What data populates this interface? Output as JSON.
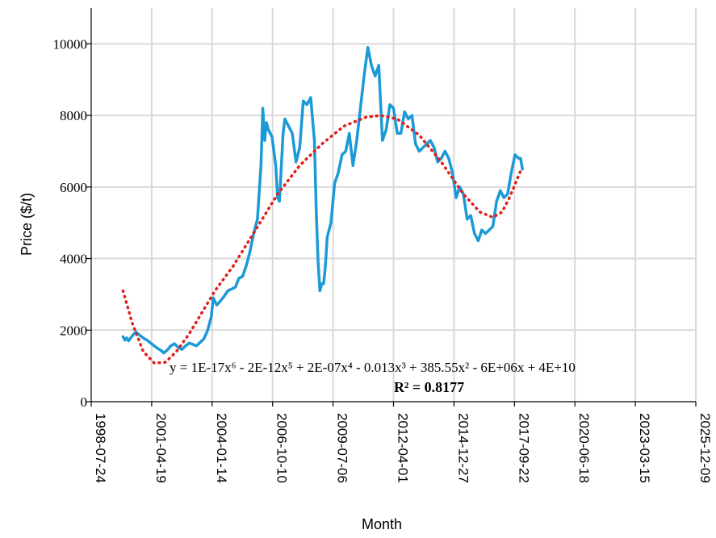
{
  "chart_data": {
    "type": "line",
    "xlabel": "Month",
    "ylabel": "Price ($/t)",
    "ylim": [
      0,
      11000
    ],
    "yticks": [
      "0",
      "2000",
      "4000",
      "6000",
      "8000",
      "10000"
    ],
    "xlim": [
      "1998-07-24",
      "2025-12-09"
    ],
    "xticks": [
      "1998-07-24",
      "2001-04-19",
      "2004-01-14",
      "2006-10-10",
      "2009-07-06",
      "2012-04-01",
      "2014-12-27",
      "2017-09-22",
      "2020-06-18",
      "2023-03-15",
      "2025-12-09"
    ],
    "grid": true,
    "legend": "none",
    "series": [
      {
        "color": "#1b9ad6",
        "points": [
          [
            "2000-01-01",
            1820
          ],
          [
            "2000-02-01",
            1720
          ],
          [
            "2000-03-01",
            1780
          ],
          [
            "2000-04-01",
            1700
          ],
          [
            "2000-06-01",
            1840
          ],
          [
            "2000-08-01",
            1950
          ],
          [
            "2000-10-01",
            1860
          ],
          [
            "2000-12-01",
            1780
          ],
          [
            "2001-02-01",
            1720
          ],
          [
            "2001-04-01",
            1640
          ],
          [
            "2001-06-01",
            1560
          ],
          [
            "2001-08-01",
            1480
          ],
          [
            "2001-10-01",
            1420
          ],
          [
            "2001-11-01",
            1360
          ],
          [
            "2002-01-01",
            1440
          ],
          [
            "2002-03-01",
            1560
          ],
          [
            "2002-05-01",
            1620
          ],
          [
            "2002-07-01",
            1520
          ],
          [
            "2002-09-01",
            1460
          ],
          [
            "2002-11-01",
            1560
          ],
          [
            "2003-01-01",
            1640
          ],
          [
            "2003-03-01",
            1600
          ],
          [
            "2003-05-01",
            1560
          ],
          [
            "2003-07-01",
            1660
          ],
          [
            "2003-09-01",
            1760
          ],
          [
            "2003-11-01",
            2000
          ],
          [
            "2004-01-01",
            2380
          ],
          [
            "2004-02-01",
            2900
          ],
          [
            "2004-04-01",
            2700
          ],
          [
            "2004-06-01",
            2820
          ],
          [
            "2004-08-01",
            2950
          ],
          [
            "2004-10-01",
            3100
          ],
          [
            "2004-12-01",
            3150
          ],
          [
            "2005-02-01",
            3200
          ],
          [
            "2005-04-01",
            3450
          ],
          [
            "2005-06-01",
            3500
          ],
          [
            "2005-08-01",
            3800
          ],
          [
            "2005-10-01",
            4200
          ],
          [
            "2005-12-01",
            4700
          ],
          [
            "2006-02-01",
            5100
          ],
          [
            "2006-04-01",
            6600
          ],
          [
            "2006-05-01",
            8200
          ],
          [
            "2006-06-01",
            7300
          ],
          [
            "2006-07-01",
            7800
          ],
          [
            "2006-08-01",
            7600
          ],
          [
            "2006-10-01",
            7400
          ],
          [
            "2006-12-01",
            6600
          ],
          [
            "2007-01-01",
            5700
          ],
          [
            "2007-02-01",
            5600
          ],
          [
            "2007-04-01",
            7500
          ],
          [
            "2007-05-01",
            7900
          ],
          [
            "2007-07-01",
            7700
          ],
          [
            "2007-09-01",
            7500
          ],
          [
            "2007-11-01",
            6700
          ],
          [
            "2008-01-01",
            7100
          ],
          [
            "2008-03-01",
            8400
          ],
          [
            "2008-05-01",
            8300
          ],
          [
            "2008-07-01",
            8500
          ],
          [
            "2008-09-01",
            7300
          ],
          [
            "2008-10-01",
            5300
          ],
          [
            "2008-11-01",
            3900
          ],
          [
            "2008-12-01",
            3100
          ],
          [
            "2009-01-01",
            3300
          ],
          [
            "2009-02-01",
            3300
          ],
          [
            "2009-03-01",
            3800
          ],
          [
            "2009-04-01",
            4600
          ],
          [
            "2009-05-01",
            4800
          ],
          [
            "2009-06-01",
            5000
          ],
          [
            "2009-08-01",
            6100
          ],
          [
            "2009-10-01",
            6400
          ],
          [
            "2009-12-01",
            6900
          ],
          [
            "2010-02-01",
            7000
          ],
          [
            "2010-04-01",
            7500
          ],
          [
            "2010-06-01",
            6600
          ],
          [
            "2010-08-01",
            7300
          ],
          [
            "2010-10-01",
            8200
          ],
          [
            "2010-12-01",
            9100
          ],
          [
            "2011-02-01",
            9900
          ],
          [
            "2011-04-01",
            9400
          ],
          [
            "2011-06-01",
            9100
          ],
          [
            "2011-08-01",
            9400
          ],
          [
            "2011-10-01",
            7300
          ],
          [
            "2011-12-01",
            7600
          ],
          [
            "2012-02-01",
            8300
          ],
          [
            "2012-04-01",
            8200
          ],
          [
            "2012-06-01",
            7500
          ],
          [
            "2012-08-01",
            7500
          ],
          [
            "2012-10-01",
            8100
          ],
          [
            "2012-12-01",
            7900
          ],
          [
            "2013-02-01",
            8000
          ],
          [
            "2013-04-01",
            7200
          ],
          [
            "2013-06-01",
            7000
          ],
          [
            "2013-08-01",
            7100
          ],
          [
            "2013-10-01",
            7200
          ],
          [
            "2013-12-01",
            7300
          ],
          [
            "2014-02-01",
            7100
          ],
          [
            "2014-04-01",
            6700
          ],
          [
            "2014-06-01",
            6800
          ],
          [
            "2014-08-01",
            7000
          ],
          [
            "2014-10-01",
            6800
          ],
          [
            "2014-12-01",
            6400
          ],
          [
            "2015-02-01",
            5700
          ],
          [
            "2015-04-01",
            6000
          ],
          [
            "2015-06-01",
            5800
          ],
          [
            "2015-08-01",
            5100
          ],
          [
            "2015-10-01",
            5200
          ],
          [
            "2015-12-01",
            4700
          ],
          [
            "2016-02-01",
            4500
          ],
          [
            "2016-04-01",
            4800
          ],
          [
            "2016-06-01",
            4700
          ],
          [
            "2016-08-01",
            4800
          ],
          [
            "2016-10-01",
            4900
          ],
          [
            "2016-12-01",
            5600
          ],
          [
            "2017-02-01",
            5900
          ],
          [
            "2017-04-01",
            5700
          ],
          [
            "2017-06-01",
            5800
          ],
          [
            "2017-08-01",
            6400
          ],
          [
            "2017-10-01",
            6900
          ],
          [
            "2017-12-01",
            6800
          ],
          [
            "2018-01-01",
            6800
          ],
          [
            "2018-02-01",
            6500
          ]
        ]
      }
    ],
    "trendline": {
      "type": "polynomial",
      "color": "#e0201b",
      "style": "dotted",
      "equation": "y = 1E-17x⁶ - 2E-12x⁵ + 2E-07x⁴ - 0.013x³ + 385.55x² - 6E+06x + 4E+10",
      "r_squared": "R² = 0.8177",
      "points": [
        [
          "2000-01-01",
          3100
        ],
        [
          "2000-06-01",
          2200
        ],
        [
          "2000-12-01",
          1400
        ],
        [
          "2001-06-01",
          1080
        ],
        [
          "2001-12-01",
          1100
        ],
        [
          "2002-06-01",
          1400
        ],
        [
          "2003-01-01",
          1900
        ],
        [
          "2003-08-01",
          2500
        ],
        [
          "2004-03-01",
          3100
        ],
        [
          "2005-01-01",
          3800
        ],
        [
          "2006-01-01",
          4800
        ],
        [
          "2007-01-01",
          5800
        ],
        [
          "2008-01-01",
          6600
        ],
        [
          "2009-01-01",
          7200
        ],
        [
          "2010-01-01",
          7700
        ],
        [
          "2011-01-01",
          7950
        ],
        [
          "2011-09-01",
          8000
        ],
        [
          "2012-06-01",
          7900
        ],
        [
          "2013-06-01",
          7450
        ],
        [
          "2014-06-01",
          6700
        ],
        [
          "2015-06-01",
          5800
        ],
        [
          "2016-03-01",
          5300
        ],
        [
          "2016-10-01",
          5150
        ],
        [
          "2017-03-01",
          5300
        ],
        [
          "2017-07-01",
          5700
        ],
        [
          "2018-01-01",
          6450
        ]
      ]
    }
  }
}
